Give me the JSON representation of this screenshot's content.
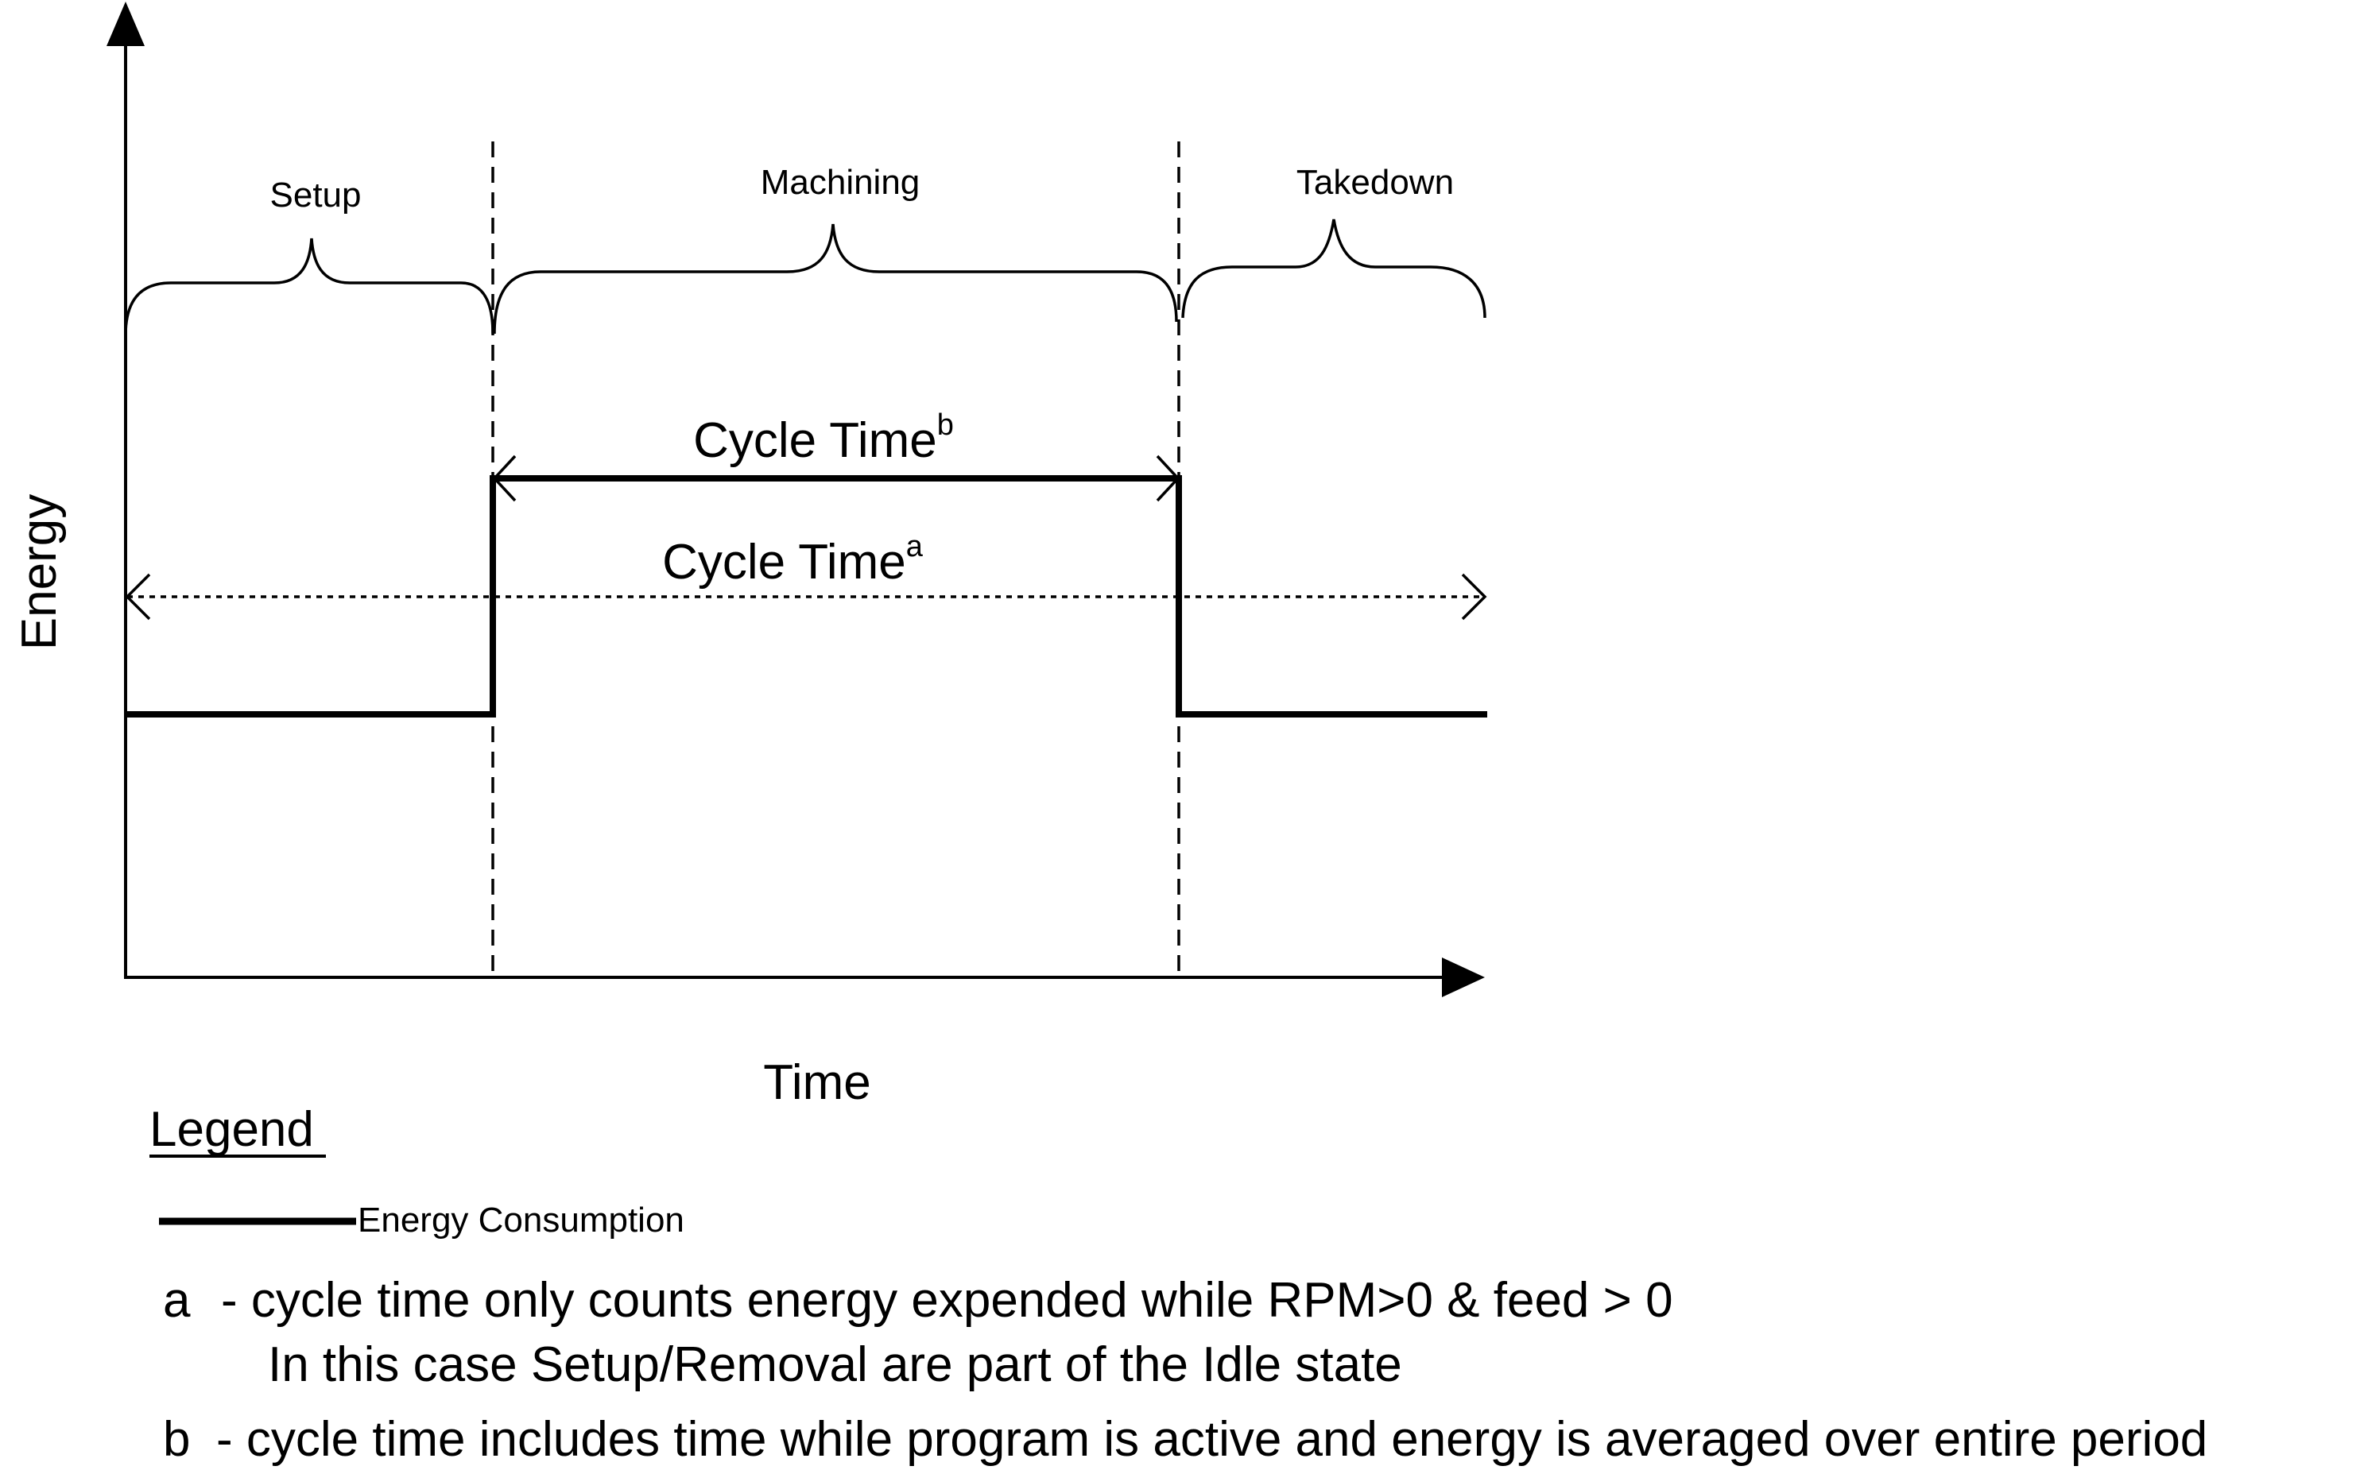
{
  "diagram": {
    "y_axis_label": "Energy",
    "x_axis_label": "Time",
    "phases": {
      "setup": "Setup",
      "machining": "Machining",
      "takedown": "Takedown"
    },
    "cycle_time_b": {
      "text": "Cycle Time",
      "superscript": "b"
    },
    "cycle_time_a": {
      "text": "Cycle Time",
      "superscript": "a"
    }
  },
  "legend": {
    "title": "Legend",
    "energy_label": "Energy Consumption",
    "note_a_marker": "a",
    "note_a_line1": "- cycle time only counts energy expended while RPM>0 & feed > 0",
    "note_a_line2": "In this case Setup/Removal are part of the Idle state",
    "note_b_marker": "b",
    "note_b_line1": "- cycle time includes time while program is active and energy is averaged over entire period"
  }
}
